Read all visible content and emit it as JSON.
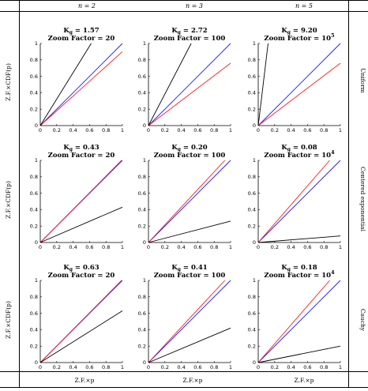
{
  "column_headers": [
    "n = 2",
    "n = 3",
    "n = 5"
  ],
  "row_labels": [
    "Uniform",
    "Centered exponential",
    "Cauchy"
  ],
  "y_axis_label": "Z.F.×CDF(p)",
  "x_axis_label": "Z.F.×p",
  "chart_data": {
    "type": "line",
    "layout": "3x3 grid",
    "xlim": [
      0,
      1
    ],
    "ylim": [
      0,
      1
    ],
    "x_ticks": [
      "0",
      "0.2",
      "0.4",
      "0.6",
      "0.8",
      "1"
    ],
    "y_ticks": [
      "0",
      "0.2",
      "0.4",
      "0.6",
      "0.8",
      "1"
    ],
    "colors": {
      "blue": "#1a1aff",
      "red": "#ff1a1a",
      "black": "#000000"
    },
    "panels": [
      {
        "row": 0,
        "col": 0,
        "title": "K_g = 1.57",
        "zoom": "Zoom Factor = 20",
        "series": [
          {
            "color": "blue",
            "x": [
              0,
              1
            ],
            "y": [
              0,
              1
            ]
          },
          {
            "color": "red",
            "x": [
              0,
              1
            ],
            "y": [
              0,
              0.9
            ]
          },
          {
            "color": "black",
            "x": [
              0,
              0.62
            ],
            "y": [
              0,
              1
            ]
          }
        ]
      },
      {
        "row": 0,
        "col": 1,
        "title": "K_g = 2.72",
        "zoom": "Zoom Factor = 100",
        "series": [
          {
            "color": "blue",
            "x": [
              0,
              1
            ],
            "y": [
              0,
              1
            ]
          },
          {
            "color": "red",
            "x": [
              0,
              1
            ],
            "y": [
              0,
              0.76
            ]
          },
          {
            "color": "black",
            "x": [
              0,
              0.52
            ],
            "y": [
              0,
              1
            ]
          }
        ]
      },
      {
        "row": 0,
        "col": 2,
        "title": "K_g = 9.20",
        "zoom": "Zoom Factor = 10",
        "zoom_exp": "5",
        "series": [
          {
            "color": "blue",
            "x": [
              0,
              1
            ],
            "y": [
              0,
              1
            ]
          },
          {
            "color": "red",
            "x": [
              0,
              1
            ],
            "y": [
              0,
              0.76
            ]
          },
          {
            "color": "black",
            "x": [
              0,
              0.12
            ],
            "y": [
              0,
              1
            ]
          }
        ]
      },
      {
        "row": 1,
        "col": 0,
        "title": "K_g = 0.43",
        "zoom": "Zoom Factor = 20",
        "series": [
          {
            "color": "blue",
            "x": [
              0,
              1
            ],
            "y": [
              0,
              1
            ]
          },
          {
            "color": "red",
            "x": [
              0,
              0.99
            ],
            "y": [
              0,
              1
            ]
          },
          {
            "color": "black",
            "x": [
              0,
              1
            ],
            "y": [
              0,
              0.43
            ]
          }
        ]
      },
      {
        "row": 1,
        "col": 1,
        "title": "K_g = 0.20",
        "zoom": "Zoom Factor = 100",
        "series": [
          {
            "color": "blue",
            "x": [
              0,
              1
            ],
            "y": [
              0,
              1
            ]
          },
          {
            "color": "red",
            "x": [
              0,
              0.93
            ],
            "y": [
              0,
              1
            ]
          },
          {
            "color": "black",
            "x": [
              0,
              1
            ],
            "y": [
              0,
              0.26
            ]
          }
        ]
      },
      {
        "row": 1,
        "col": 2,
        "title": "K_g = 0.08",
        "zoom": "Zoom Factor = 10",
        "zoom_exp": "4",
        "series": [
          {
            "color": "blue",
            "x": [
              0,
              1
            ],
            "y": [
              0,
              1
            ]
          },
          {
            "color": "red",
            "x": [
              0,
              0.87
            ],
            "y": [
              0,
              1
            ]
          },
          {
            "color": "black",
            "x": [
              0,
              1
            ],
            "y": [
              0,
              0.08
            ]
          }
        ]
      },
      {
        "row": 2,
        "col": 0,
        "title": "K_g = 0.63",
        "zoom": "Zoom Factor = 20",
        "series": [
          {
            "color": "blue",
            "x": [
              0,
              1
            ],
            "y": [
              0,
              1
            ]
          },
          {
            "color": "red",
            "x": [
              0,
              0.99
            ],
            "y": [
              0,
              1
            ]
          },
          {
            "color": "black",
            "x": [
              0,
              1
            ],
            "y": [
              0,
              0.63
            ]
          }
        ]
      },
      {
        "row": 2,
        "col": 1,
        "title": "K_g = 0.41",
        "zoom": "Zoom Factor = 100",
        "series": [
          {
            "color": "blue",
            "x": [
              0,
              1
            ],
            "y": [
              0,
              1
            ]
          },
          {
            "color": "red",
            "x": [
              0,
              0.93
            ],
            "y": [
              0,
              1
            ]
          },
          {
            "color": "black",
            "x": [
              0,
              1
            ],
            "y": [
              0,
              0.42
            ]
          }
        ]
      },
      {
        "row": 2,
        "col": 2,
        "title": "K_g = 0.18",
        "zoom": "Zoom Factor = 10",
        "zoom_exp": "4",
        "series": [
          {
            "color": "blue",
            "x": [
              0,
              1
            ],
            "y": [
              0,
              1
            ]
          },
          {
            "color": "red",
            "x": [
              0,
              0.87
            ],
            "y": [
              0,
              1
            ]
          },
          {
            "color": "black",
            "x": [
              0,
              1
            ],
            "y": [
              0,
              0.2
            ]
          }
        ]
      }
    ]
  }
}
